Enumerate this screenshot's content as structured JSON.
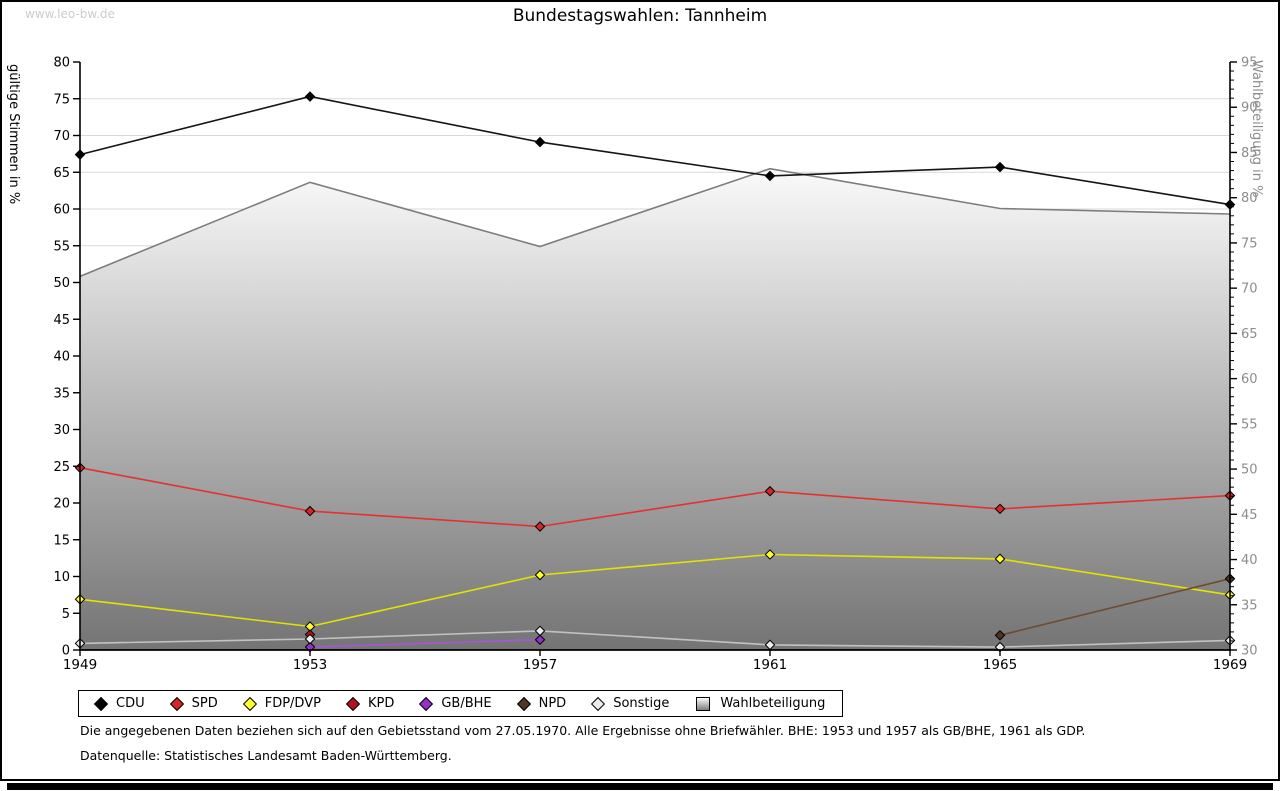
{
  "watermark": "www.leo-bw.de",
  "title": "Bundestagswahlen: Tannheim",
  "footnotes": {
    "line1": "Die angegebenen Daten beziehen sich auf den Gebietsstand vom 27.05.1970. Alle Ergebnisse ohne Briefwähler. BHE: 1953 und 1957 als GB/BHE, 1961 als GDP.",
    "line2": "Datenquelle: Statistisches Landesamt Baden-Württemberg."
  },
  "chart_data": {
    "type": "line",
    "x": [
      1949,
      1953,
      1957,
      1961,
      1965,
      1969
    ],
    "x_tick_labels": [
      "1949",
      "1953",
      "1957",
      "1961",
      "1965",
      "1969"
    ],
    "left_axis": {
      "label": "gültige Stimmen in %",
      "min": 0,
      "max": 80,
      "tick_step": 5
    },
    "right_axis": {
      "label": "Wahlbeteiligung in %",
      "min": 30,
      "max": 95,
      "tick_step": 5,
      "minor_step": 1
    },
    "grid": "horizontal-only",
    "legend_position": "bottom",
    "series": [
      {
        "name": "CDU",
        "axis": "left",
        "color": "#141414",
        "marker_fill": "#000000",
        "values": [
          67.4,
          75.3,
          69.1,
          64.5,
          65.7,
          60.6
        ]
      },
      {
        "name": "SPD",
        "axis": "left",
        "color": "#e53030",
        "marker_fill": "#d62626",
        "values": [
          24.8,
          18.9,
          16.8,
          21.6,
          19.2,
          21.0
        ]
      },
      {
        "name": "FDP/DVP",
        "axis": "left",
        "color": "#e3e300",
        "marker_fill": "#ffff2e",
        "values": [
          6.9,
          3.2,
          10.2,
          13.0,
          12.4,
          7.5
        ]
      },
      {
        "name": "KPD",
        "axis": "left",
        "color": "#b5121f",
        "marker_fill": "#b5121f",
        "values": [
          null,
          2.1,
          null,
          null,
          null,
          null
        ]
      },
      {
        "name": "GB/BHE",
        "axis": "left",
        "color": "#a855d8",
        "marker_fill": "#9130c9",
        "values": [
          null,
          0.4,
          1.4,
          null,
          null,
          null
        ]
      },
      {
        "name": "NPD",
        "axis": "left",
        "color": "#6e4b31",
        "marker_fill": "#503423",
        "values": [
          null,
          null,
          null,
          null,
          2.0,
          9.7
        ]
      },
      {
        "name": "Sonstige",
        "axis": "left",
        "color": "#c2c2c2",
        "marker_fill": "#ebebeb",
        "values": [
          0.9,
          1.5,
          2.6,
          0.7,
          0.4,
          1.3
        ]
      },
      {
        "name": "Wahlbeteiligung",
        "axis": "right",
        "color": "#7d7d7d",
        "area": true,
        "values": [
          71.3,
          81.7,
          74.6,
          83.2,
          78.8,
          78.2
        ]
      }
    ],
    "colors": {
      "grid": "#dadada",
      "axis": "#000000",
      "right_axis_text": "#8c8c8c",
      "area_gradient_top": "#ffffff",
      "area_gradient_bottom": "#747474",
      "watermark": "#cccccc"
    }
  }
}
